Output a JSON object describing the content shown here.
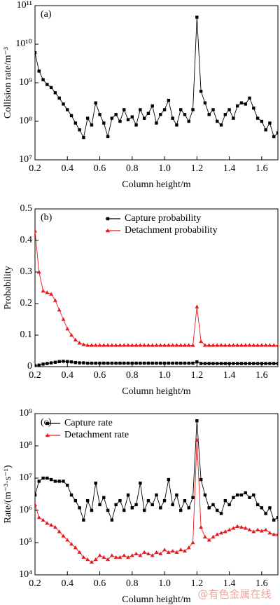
{
  "chart_data": [
    {
      "type": "line",
      "panel_label": "(a)",
      "xlabel": "Column height/m",
      "ylabel": "Collision rate/m⁻³",
      "log_y": true,
      "xlim": [
        0.2,
        1.7
      ],
      "ylim": [
        10000000,
        100000000000
      ],
      "xticks": [
        0.2,
        0.4,
        0.6,
        0.8,
        {
          "value": 1,
          "label": "1.0"
        },
        1.2,
        1.4,
        1.6
      ],
      "yticks": [
        {
          "value": 10000000,
          "label": "10⁷"
        },
        {
          "value": 100000000,
          "label": "10⁸"
        },
        {
          "value": 1000000000,
          "label": "10⁹"
        },
        {
          "value": 10000000000,
          "label": "10¹⁰"
        },
        {
          "value": 100000000000,
          "label": "10¹¹"
        }
      ],
      "x": [
        0.2,
        0.225,
        0.25,
        0.275,
        0.3,
        0.325,
        0.35,
        0.375,
        0.4,
        0.425,
        0.45,
        0.475,
        0.5,
        0.525,
        0.55,
        0.575,
        0.6,
        0.625,
        0.65,
        0.675,
        0.7,
        0.725,
        0.75,
        0.775,
        0.8,
        0.825,
        0.85,
        0.875,
        0.9,
        0.925,
        0.95,
        0.975,
        1,
        1.025,
        1.05,
        1.075,
        1.1,
        1.125,
        1.15,
        1.175,
        1.2,
        1.225,
        1.25,
        1.275,
        1.3,
        1.325,
        1.35,
        1.375,
        1.4,
        1.425,
        1.45,
        1.475,
        1.5,
        1.525,
        1.55,
        1.575,
        1.6,
        1.625,
        1.65,
        1.675,
        1.7
      ],
      "series": [
        {
          "color": "#000000",
          "marker": "square",
          "values": [
            6000000000.0,
            2000000000.0,
            1200000000.0,
            900000000.0,
            750000000.0,
            550000000.0,
            400000000.0,
            280000000.0,
            200000000.0,
            140000000.0,
            90000000.0,
            60000000.0,
            38000000.0,
            120000000.0,
            80000000.0,
            300000000.0,
            150000000.0,
            90000000.0,
            40000000.0,
            120000000.0,
            150000000.0,
            100000000.0,
            200000000.0,
            110000000.0,
            130000000.0,
            80000000.0,
            200000000.0,
            120000000.0,
            160000000.0,
            250000000.0,
            90000000.0,
            150000000.0,
            200000000.0,
            350000000.0,
            120000000.0,
            80000000.0,
            200000000.0,
            150000000.0,
            100000000.0,
            200000000.0,
            50000000000.0,
            600000000.0,
            300000000.0,
            150000000.0,
            200000000.0,
            100000000.0,
            80000000.0,
            150000000.0,
            200000000.0,
            120000000.0,
            250000000.0,
            300000000.0,
            280000000.0,
            400000000.0,
            220000000.0,
            120000000.0,
            100000000.0,
            60000000.0,
            90000000.0,
            40000000.0,
            50000000.0
          ]
        }
      ]
    },
    {
      "type": "line",
      "panel_label": "(b)",
      "xlabel": "Column height/m",
      "ylabel": "Probability",
      "log_y": false,
      "legend_loc": "upper right",
      "xlim": [
        0.2,
        1.7
      ],
      "ylim": [
        0,
        0.5
      ],
      "xticks": [
        0.2,
        0.4,
        0.6,
        0.8,
        {
          "value": 1,
          "label": "1.0"
        },
        1.2,
        1.4,
        1.6
      ],
      "yticks": [
        0,
        0.1,
        0.2,
        0.3,
        0.4,
        0.5
      ],
      "x": [
        0.2,
        0.225,
        0.25,
        0.275,
        0.3,
        0.325,
        0.35,
        0.375,
        0.4,
        0.425,
        0.45,
        0.475,
        0.5,
        0.525,
        0.55,
        0.575,
        0.6,
        0.625,
        0.65,
        0.675,
        0.7,
        0.725,
        0.75,
        0.775,
        0.8,
        0.825,
        0.85,
        0.875,
        0.9,
        0.925,
        0.95,
        0.975,
        1,
        1.025,
        1.05,
        1.075,
        1.1,
        1.125,
        1.15,
        1.175,
        1.2,
        1.225,
        1.25,
        1.275,
        1.3,
        1.325,
        1.35,
        1.375,
        1.4,
        1.425,
        1.45,
        1.475,
        1.5,
        1.525,
        1.55,
        1.575,
        1.6,
        1.625,
        1.65,
        1.675,
        1.7
      ],
      "series": [
        {
          "name": "Capture probability",
          "color": "#000000",
          "marker": "square",
          "values": [
            0.003,
            0.005,
            0.008,
            0.01,
            0.012,
            0.014,
            0.016,
            0.017,
            0.016,
            0.015,
            0.013,
            0.012,
            0.012,
            0.011,
            0.011,
            0.011,
            0.011,
            0.011,
            0.011,
            0.011,
            0.011,
            0.011,
            0.011,
            0.011,
            0.011,
            0.011,
            0.011,
            0.011,
            0.011,
            0.011,
            0.011,
            0.011,
            0.011,
            0.011,
            0.011,
            0.011,
            0.011,
            0.011,
            0.011,
            0.011,
            0.015,
            0.01,
            0.01,
            0.01,
            0.01,
            0.01,
            0.01,
            0.01,
            0.01,
            0.01,
            0.01,
            0.01,
            0.01,
            0.01,
            0.01,
            0.01,
            0.01,
            0.01,
            0.01,
            0.01,
            0.01
          ]
        },
        {
          "name": "Detachment probability",
          "color": "#e8191c",
          "marker": "triangle",
          "values": [
            0.43,
            0.3,
            0.24,
            0.235,
            0.23,
            0.21,
            0.18,
            0.15,
            0.12,
            0.1,
            0.085,
            0.075,
            0.07,
            0.068,
            0.068,
            0.068,
            0.068,
            0.068,
            0.068,
            0.068,
            0.068,
            0.068,
            0.068,
            0.068,
            0.068,
            0.068,
            0.068,
            0.068,
            0.068,
            0.068,
            0.068,
            0.068,
            0.068,
            0.068,
            0.068,
            0.068,
            0.068,
            0.068,
            0.068,
            0.068,
            0.19,
            0.08,
            0.068,
            0.068,
            0.068,
            0.068,
            0.068,
            0.068,
            0.068,
            0.068,
            0.068,
            0.068,
            0.068,
            0.068,
            0.068,
            0.068,
            0.068,
            0.068,
            0.068,
            0.068,
            0.068
          ]
        }
      ]
    },
    {
      "type": "line",
      "panel_label": "(c)",
      "xlabel": "Column height/m",
      "ylabel": "Rate/(m⁻³·s⁻¹)",
      "log_y": true,
      "legend_loc": "upper left",
      "xlim": [
        0.2,
        1.7
      ],
      "ylim": [
        10000,
        1000000000
      ],
      "xticks": [
        0.2,
        0.4,
        0.6,
        0.8,
        {
          "value": 1,
          "label": "1.0"
        },
        1.2,
        1.4,
        1.6
      ],
      "yticks": [
        {
          "value": 10000,
          "label": "10⁴"
        },
        {
          "value": 100000,
          "label": "10⁵"
        },
        {
          "value": 1000000,
          "label": "10⁶"
        },
        {
          "value": 10000000,
          "label": "10⁷"
        },
        {
          "value": 100000000,
          "label": "10⁸"
        },
        {
          "value": 1000000000,
          "label": "10⁹"
        }
      ],
      "x": [
        0.2,
        0.225,
        0.25,
        0.275,
        0.3,
        0.325,
        0.35,
        0.375,
        0.4,
        0.425,
        0.45,
        0.475,
        0.5,
        0.525,
        0.55,
        0.575,
        0.6,
        0.625,
        0.65,
        0.675,
        0.7,
        0.725,
        0.75,
        0.775,
        0.8,
        0.825,
        0.85,
        0.875,
        0.9,
        0.925,
        0.95,
        0.975,
        1,
        1.025,
        1.05,
        1.075,
        1.1,
        1.125,
        1.15,
        1.175,
        1.2,
        1.225,
        1.25,
        1.275,
        1.3,
        1.325,
        1.35,
        1.375,
        1.4,
        1.425,
        1.45,
        1.475,
        1.5,
        1.525,
        1.55,
        1.575,
        1.6,
        1.625,
        1.65,
        1.675,
        1.7
      ],
      "series": [
        {
          "name": "Capture rate",
          "color": "#000000",
          "marker": "square",
          "values": [
            3000000.0,
            8000000.0,
            10000000.0,
            10000000.0,
            9000000.0,
            8000000.0,
            8000000.0,
            8000000.0,
            6000000.0,
            3000000.0,
            2000000.0,
            1200000.0,
            500000.0,
            2000000.0,
            1000000.0,
            7000000.0,
            1500000.0,
            2500000.0,
            1000000.0,
            500000.0,
            1500000.0,
            2000000.0,
            1000000.0,
            3000000.0,
            1200000.0,
            1500000.0,
            7000000.0,
            1000000.0,
            2000000.0,
            1500000.0,
            3000000.0,
            1200000.0,
            2000000.0,
            9000000.0,
            1500000.0,
            3000000.0,
            1000000.0,
            2000000.0,
            1200000.0,
            2500000.0,
            600000000.0,
            9000000.0,
            3000000.0,
            1200000.0,
            1500000.0,
            1000000.0,
            800000.0,
            2000000.0,
            1500000.0,
            2500000.0,
            3000000.0,
            3000000.0,
            3500000.0,
            2500000.0,
            3000000.0,
            1500000.0,
            1200000.0,
            800000.0,
            1200000.0,
            500000.0,
            600000.0
          ]
        },
        {
          "name": "Detachment rate",
          "color": "#e8191c",
          "marker": "triangle",
          "values": [
            1500000.0,
            600000.0,
            500000.0,
            400000.0,
            350000.0,
            300000.0,
            220000.0,
            160000.0,
            120000.0,
            90000.0,
            70000.0,
            50000.0,
            35000.0,
            30000.0,
            25000.0,
            30000.0,
            40000.0,
            35000.0,
            30000.0,
            40000.0,
            35000.0,
            35000.0,
            40000.0,
            35000.0,
            40000.0,
            45000.0,
            40000.0,
            50000.0,
            45000.0,
            40000.0,
            50000.0,
            45000.0,
            60000.0,
            50000.0,
            55000.0,
            50000.0,
            60000.0,
            55000.0,
            70000.0,
            100000.0,
            150000000.0,
            300000.0,
            150000.0,
            120000.0,
            150000.0,
            180000.0,
            200000.0,
            220000.0,
            250000.0,
            280000.0,
            320000.0,
            300000.0,
            280000.0,
            250000.0,
            220000.0,
            250000.0,
            230000.0,
            250000.0,
            200000.0,
            180000.0,
            180000.0
          ]
        }
      ]
    }
  ],
  "watermark": "@有色金属在线"
}
